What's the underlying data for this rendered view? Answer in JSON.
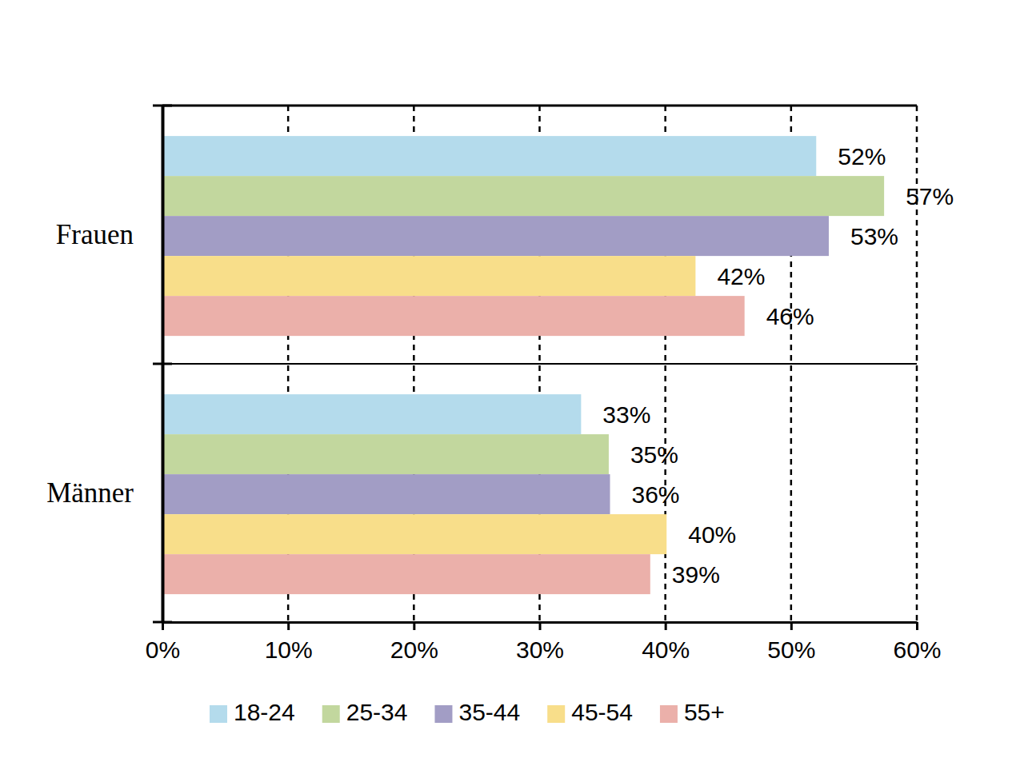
{
  "chart_data": {
    "type": "bar",
    "orientation": "horizontal",
    "categories": [
      "Frauen",
      "Männer"
    ],
    "series": [
      {
        "name": "18-24",
        "color": "#b4dbec",
        "values": [
          52.0,
          33.3
        ],
        "value_labels": [
          "52%",
          "33%"
        ]
      },
      {
        "name": "25-34",
        "color": "#c2d79e",
        "values": [
          57.4,
          35.5
        ],
        "value_labels": [
          "57%",
          "35%"
        ]
      },
      {
        "name": "35-44",
        "color": "#a29dc5",
        "values": [
          53.0,
          35.6
        ],
        "value_labels": [
          "53%",
          "36%"
        ]
      },
      {
        "name": "45-54",
        "color": "#f8de8a",
        "values": [
          42.4,
          40.1
        ],
        "value_labels": [
          "42%",
          "40%"
        ]
      },
      {
        "name": "55+",
        "color": "#ebb0aa",
        "values": [
          46.3,
          38.8
        ],
        "value_labels": [
          "46%",
          "39%"
        ]
      }
    ],
    "xlim": [
      0,
      60
    ],
    "xticks": [
      {
        "value": 0,
        "label": "0%"
      },
      {
        "value": 10,
        "label": "10%"
      },
      {
        "value": 20,
        "label": "20%"
      },
      {
        "value": 30,
        "label": "30%"
      },
      {
        "value": 40,
        "label": "40%"
      },
      {
        "value": 50,
        "label": "50%"
      },
      {
        "value": 60,
        "label": "60%"
      }
    ],
    "grid": true,
    "data_labels": true,
    "legend": "bottom"
  }
}
